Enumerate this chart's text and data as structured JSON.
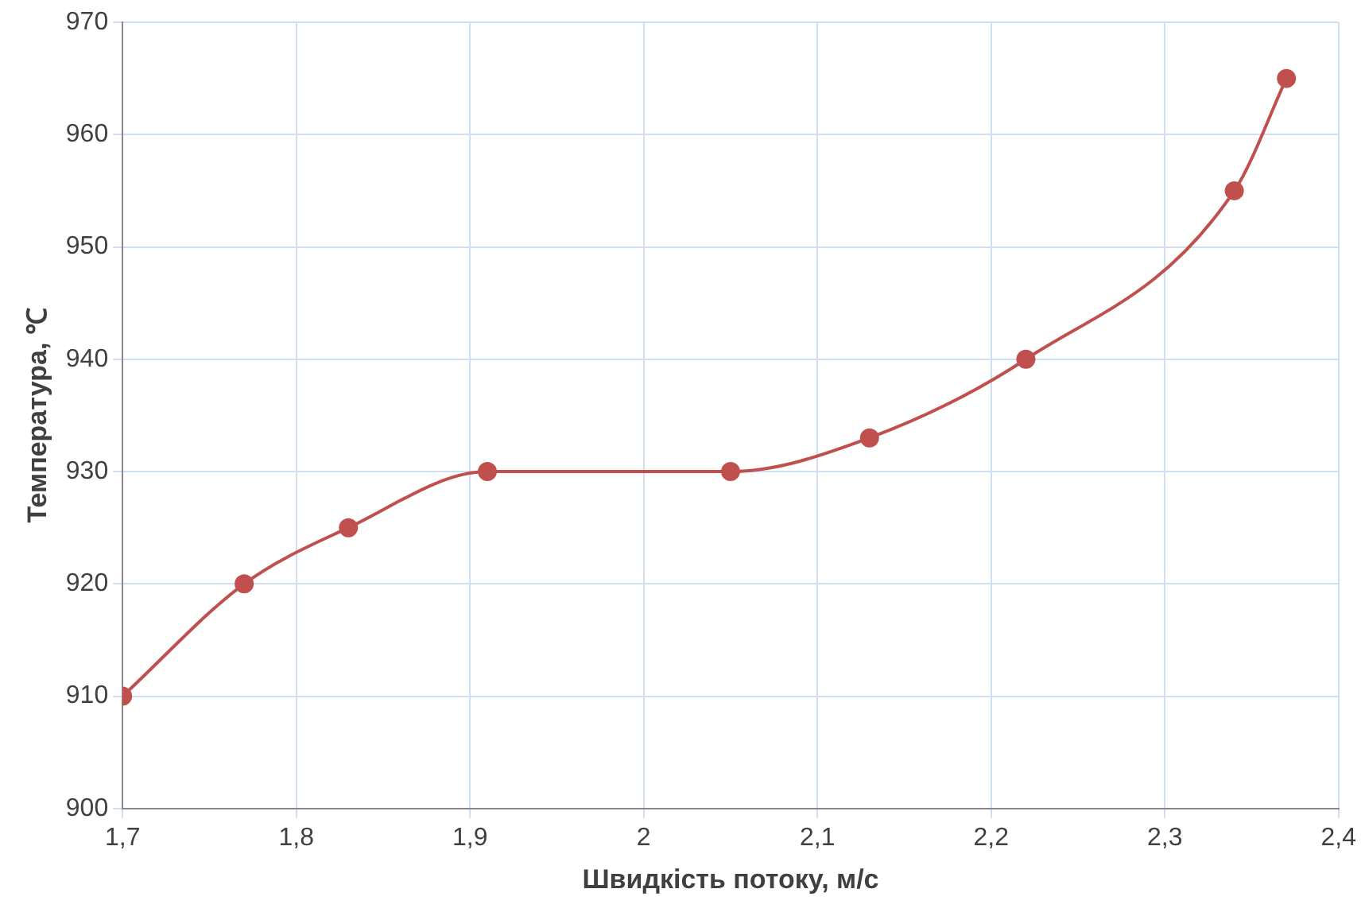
{
  "chart_data": {
    "type": "line",
    "xlabel": "Швидкість потоку, м/с",
    "ylabel": "Температура, ℃",
    "x": [
      1.7,
      1.77,
      1.83,
      1.91,
      2.05,
      2.13,
      2.22,
      2.34,
      2.37
    ],
    "series": [
      {
        "color": "#c0504d",
        "values": [
          910,
          920,
          925,
          930,
          930,
          933,
          940,
          955,
          965
        ]
      }
    ],
    "xlim": [
      1.7,
      2.4
    ],
    "xticks": [
      {
        "value": 1.7,
        "label": "1,7"
      },
      {
        "value": 1.8,
        "label": "1,8"
      },
      {
        "value": 1.9,
        "label": "1,9"
      },
      2,
      {
        "value": 2.1,
        "label": "2,1"
      },
      {
        "value": 2.2,
        "label": "2,2"
      },
      {
        "value": 2.3,
        "label": "2,3"
      },
      {
        "value": 2.4,
        "label": "2,4"
      }
    ],
    "ylim": [
      900,
      970
    ],
    "yticks": [
      900,
      910,
      920,
      930,
      940,
      950,
      960,
      970
    ],
    "grid": true,
    "legend": false,
    "marker": "circle",
    "line_style": "solid"
  }
}
